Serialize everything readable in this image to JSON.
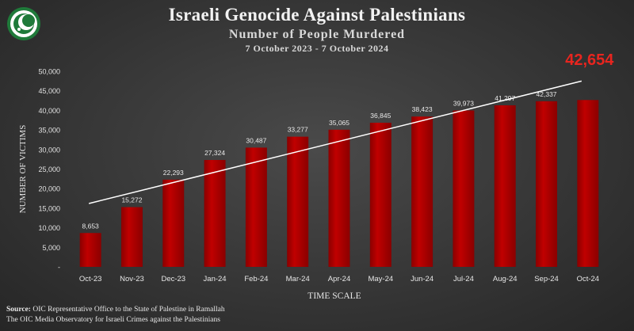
{
  "header": {
    "title": "Israeli Genocide Against Palestinians",
    "subtitle": "Number  of People Murdered",
    "daterange": "7 October  2023  - 7 October  2024"
  },
  "footer": {
    "source_label": "Source:",
    "source_text": " OIC Representative Office to the State of Palestine in Ramallah",
    "observatory": "The OIC Media Observatory  for Israeli Crimes against the Palestinians"
  },
  "colors": {
    "bar": "#c00000",
    "bar_dark": "#8a0000",
    "highlight_label": "#e8251f",
    "trend_line": "#ffffff"
  },
  "icons": {
    "logo": "oic-logo-icon"
  },
  "chart_data": {
    "type": "bar",
    "xlabel": "TIME SCALE",
    "ylabel": "NUMBER OF VICTIMS",
    "ylim": [
      0,
      50000
    ],
    "yticks": [
      {
        "value": 0,
        "label": "-"
      },
      {
        "value": 5000,
        "label": "5,000"
      },
      {
        "value": 10000,
        "label": "10,000"
      },
      {
        "value": 15000,
        "label": "15,000"
      },
      {
        "value": 20000,
        "label": "20,000"
      },
      {
        "value": 25000,
        "label": "25,000"
      },
      {
        "value": 30000,
        "label": "30,000"
      },
      {
        "value": 35000,
        "label": "35,000"
      },
      {
        "value": 40000,
        "label": "40,000"
      },
      {
        "value": 45000,
        "label": "45,000"
      },
      {
        "value": 50000,
        "label": "50,000"
      }
    ],
    "categories": [
      "Oct-23",
      "Nov-23",
      "Dec-23",
      "Jan-24",
      "Feb-24",
      "Mar-24",
      "Apr-24",
      "May-24",
      "Jun-24",
      "Jul-24",
      "Aug-24",
      "Sep-24",
      "Oct-24"
    ],
    "values": [
      8653,
      15272,
      22293,
      27324,
      30487,
      33277,
      35065,
      36845,
      38423,
      39973,
      41297,
      42337,
      42654
    ],
    "value_labels": [
      "8,653",
      "15,272",
      "22,293",
      "27,324",
      "30,487",
      "33,277",
      "35,065",
      "36,845",
      "38,423",
      "39,973",
      "41,297",
      "42,337",
      "42,654"
    ],
    "highlight_index": 12,
    "trend_line": {
      "start": 16200,
      "end": 47500
    },
    "grid": false,
    "legend": "none"
  }
}
